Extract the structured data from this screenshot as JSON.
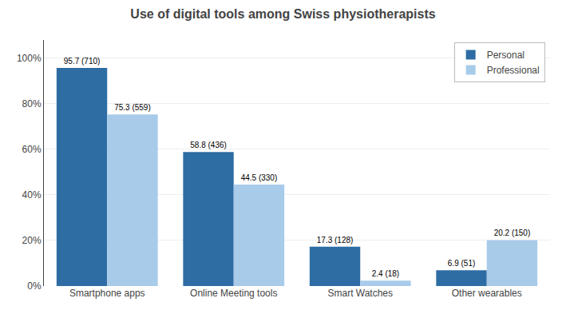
{
  "chart_data": {
    "type": "bar",
    "title": "Use of digital tools among Swiss physiotherapists",
    "categories": [
      "Smartphone apps",
      "Online Meeting tools",
      "Smart Watches",
      "Other wearables"
    ],
    "series": [
      {
        "name": "Personal",
        "color": "#2E6DA4",
        "values": [
          95.7,
          58.8,
          17.3,
          6.9
        ],
        "value_labels": [
          "95.7 (710)",
          "58.8 (436)",
          "17.3 (128)",
          "6.9 (51)"
        ]
      },
      {
        "name": "Professional",
        "color": "#A8CBEA",
        "values": [
          75.3,
          44.5,
          2.4,
          20.2
        ],
        "value_labels": [
          "75.3 (559)",
          "44.5 (330)",
          "2.4 (18)",
          "20.2 (150)"
        ]
      }
    ],
    "ylim": [
      0,
      108
    ],
    "yticks": [
      {
        "value": 0,
        "label": "0%"
      },
      {
        "value": 20,
        "label": "20%"
      },
      {
        "value": 40,
        "label": "40%"
      },
      {
        "value": 60,
        "label": "60%"
      },
      {
        "value": 80,
        "label": "80%"
      },
      {
        "value": 100,
        "label": "100%"
      }
    ],
    "grid": true,
    "legend": "upper right",
    "data_labels": true
  }
}
